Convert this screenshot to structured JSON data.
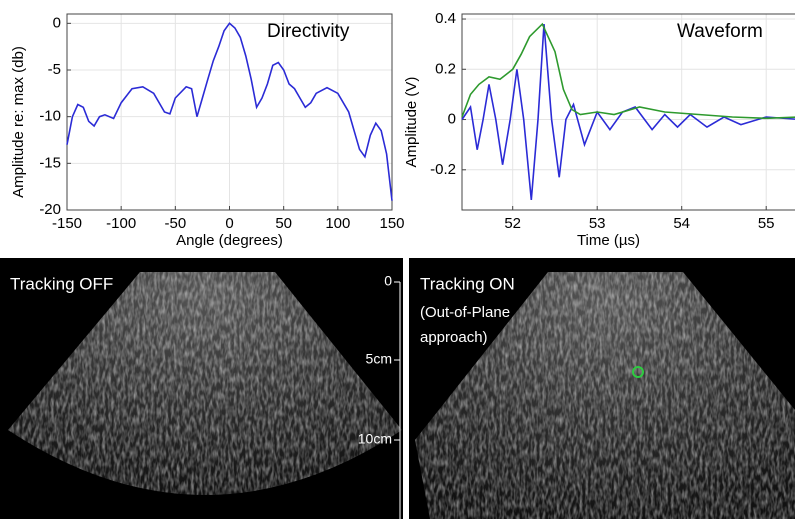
{
  "chart_data": [
    {
      "type": "line",
      "title": "Directivity",
      "x_label": "Angle (degrees)",
      "y_label": "Amplitude re: max (db)",
      "xlim": [
        -150,
        150
      ],
      "ylim": [
        -20,
        1
      ],
      "xticks": [
        -150,
        -100,
        -50,
        0,
        50,
        100,
        150
      ],
      "yticks": [
        -20,
        -15,
        -10,
        -5,
        0
      ],
      "grid": true,
      "x": [
        -150,
        -145,
        -140,
        -135,
        -130,
        -125,
        -120,
        -115,
        -107,
        -100,
        -90,
        -80,
        -70,
        -60,
        -55,
        -50,
        -40,
        -35,
        -30,
        -25,
        -20,
        -15,
        -10,
        -5,
        0,
        5,
        10,
        15,
        20,
        25,
        30,
        35,
        40,
        45,
        50,
        55,
        60,
        65,
        70,
        75,
        80,
        90,
        100,
        110,
        115,
        120,
        125,
        130,
        135,
        140,
        145,
        150
      ],
      "series": [
        {
          "color": "#2b2bd6",
          "values": [
            -13,
            -10,
            -8.7,
            -9,
            -10.5,
            -11,
            -10,
            -9.8,
            -10.2,
            -8.5,
            -7,
            -6.8,
            -7.5,
            -9.5,
            -9.7,
            -8,
            -6.8,
            -7,
            -10,
            -8,
            -6,
            -4,
            -2.5,
            -0.8,
            0,
            -0.5,
            -1.5,
            -3.5,
            -6,
            -9,
            -8,
            -6.5,
            -4.5,
            -4.2,
            -5,
            -6.5,
            -7,
            -8,
            -9,
            -8.5,
            -7.5,
            -6.9,
            -7.5,
            -9.5,
            -11.5,
            -13.5,
            -14.3,
            -12,
            -10.7,
            -11.5,
            -14,
            -19
          ]
        }
      ]
    },
    {
      "type": "line",
      "title": "Waveform",
      "x_label": "Time (µs)",
      "y_label": "Amplitude (V)",
      "xlim": [
        51.4,
        55.4
      ],
      "ylim": [
        -0.36,
        0.42
      ],
      "xticks": [
        52,
        53,
        54,
        55
      ],
      "yticks": [
        -0.2,
        0,
        0.2,
        0.4
      ],
      "grid": true,
      "series": [
        {
          "color": "#2b2bd6",
          "x": [
            51.4,
            51.5,
            51.58,
            51.65,
            51.72,
            51.8,
            51.88,
            51.97,
            52.05,
            52.13,
            52.22,
            52.3,
            52.37,
            52.46,
            52.55,
            52.63,
            52.72,
            52.85,
            53.0,
            53.15,
            53.3,
            53.45,
            53.65,
            53.8,
            53.95,
            54.1,
            54.3,
            54.5,
            54.7,
            55.0,
            55.4
          ],
          "values": [
            0,
            0.05,
            -0.12,
            0,
            0.14,
            0,
            -0.18,
            0,
            0.2,
            0,
            -0.32,
            0,
            0.38,
            0,
            -0.23,
            0,
            0.06,
            -0.1,
            0.03,
            -0.04,
            0.03,
            0.05,
            -0.04,
            0.02,
            -0.03,
            0.02,
            -0.03,
            0.01,
            -0.02,
            0.01,
            0
          ]
        },
        {
          "color": "#2e9a2e",
          "x": [
            51.4,
            51.5,
            51.6,
            51.72,
            51.85,
            52.0,
            52.1,
            52.2,
            52.35,
            52.5,
            52.6,
            52.7,
            52.8,
            53.0,
            53.2,
            53.5,
            53.8,
            54.2,
            54.6,
            55.0,
            55.4
          ],
          "values": [
            0.01,
            0.1,
            0.14,
            0.17,
            0.16,
            0.2,
            0.26,
            0.33,
            0.38,
            0.27,
            0.12,
            0.04,
            0.02,
            0.03,
            0.02,
            0.05,
            0.03,
            0.02,
            0.01,
            0.005,
            0.01
          ]
        }
      ]
    }
  ],
  "images": {
    "left_label": "Tracking OFF",
    "right_label": "Tracking ON",
    "right_note": [
      "(Out-of-Plane",
      "approach)"
    ],
    "depth_labels": [
      "0",
      "5cm",
      "10cm"
    ]
  }
}
